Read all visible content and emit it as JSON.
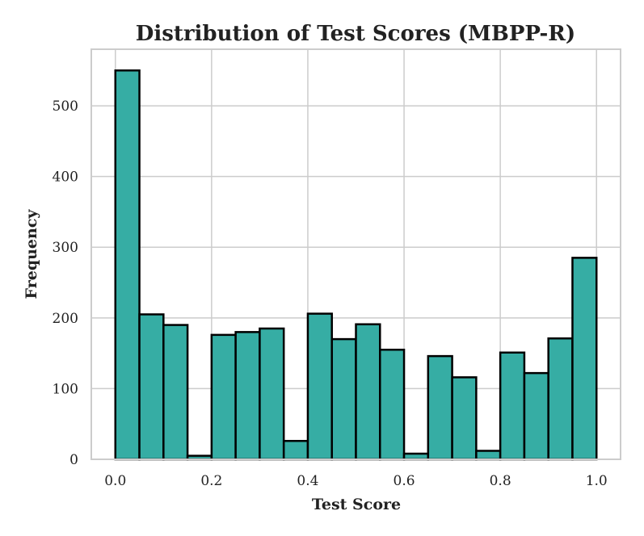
{
  "chart_data": {
    "type": "bar",
    "title": "Distribution of Test Scores (MBPP-R)",
    "xlabel": "Test Score",
    "ylabel": "Frequency",
    "xlim": [
      -0.05,
      1.05
    ],
    "ylim": [
      0,
      580
    ],
    "xticks": [
      "0.0",
      "0.2",
      "0.4",
      "0.6",
      "0.8",
      "1.0"
    ],
    "yticks": [
      "0",
      "100",
      "200",
      "300",
      "400",
      "500"
    ],
    "grid": true,
    "bin_edges": [
      0.0,
      0.05,
      0.1,
      0.15,
      0.2,
      0.25,
      0.3,
      0.35,
      0.4,
      0.45,
      0.5,
      0.55,
      0.6,
      0.65,
      0.7,
      0.75,
      0.8,
      0.85,
      0.9,
      0.95,
      1.0
    ],
    "values": [
      550,
      205,
      190,
      5,
      176,
      180,
      185,
      26,
      206,
      170,
      191,
      155,
      8,
      146,
      116,
      12,
      151,
      122,
      171,
      285
    ],
    "colors": {
      "bar_fill": "#36ada4",
      "bar_edge": "#000000",
      "grid": "#cccccc",
      "frame": "#cccccc",
      "text": "#222222"
    }
  }
}
